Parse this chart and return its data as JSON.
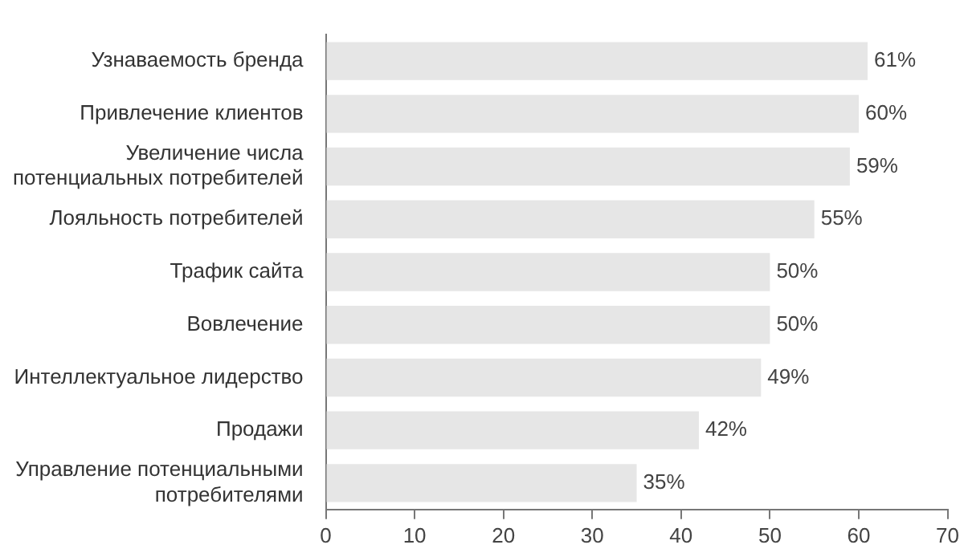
{
  "chart_data": {
    "type": "bar",
    "orientation": "horizontal",
    "categories": [
      "Узнаваемость бренда",
      "Привлечение клиентов",
      "Увеличение числа потенциальных потребителей",
      "Лояльность потребителей",
      "Трафик сайта",
      "Вовлечение",
      "Интеллектуальное лидерство",
      "Продажи",
      "Управление потенциальными потребителями"
    ],
    "values": [
      61,
      60,
      59,
      55,
      50,
      50,
      49,
      42,
      35
    ],
    "value_labels": [
      "61%",
      "60%",
      "59%",
      "55%",
      "50%",
      "50%",
      "49%",
      "42%",
      "35%"
    ],
    "color": "#e6e6e6",
    "xlim": [
      0,
      70
    ],
    "xticks": [
      0,
      10,
      20,
      30,
      40,
      50,
      60,
      70
    ],
    "grid": false,
    "legend": false
  }
}
